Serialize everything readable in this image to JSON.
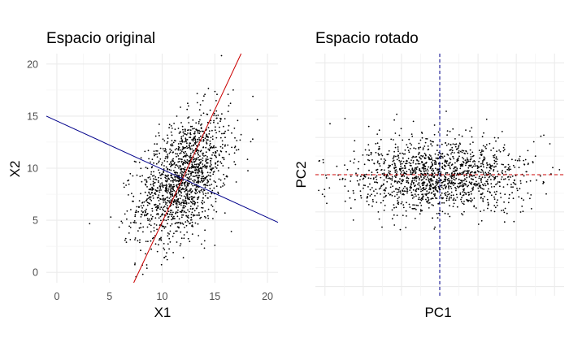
{
  "chart_data": [
    {
      "type": "scatter",
      "title": "Espacio original",
      "xlabel": "X1",
      "ylabel": "X2",
      "xlim": [
        -1,
        21
      ],
      "ylim": [
        -1,
        21
      ],
      "x_ticks": [
        0,
        5,
        10,
        15,
        20
      ],
      "y_ticks": [
        0,
        5,
        10,
        15,
        20
      ],
      "grid": true,
      "point_color": "#000000",
      "n_points": 1500,
      "point_cloud": {
        "center": [
          12,
          9
        ],
        "sd": [
          2.2,
          3.1
        ],
        "correlation": 0.45
      },
      "lines": [
        {
          "color": "#cc0000",
          "from": [
            7.3,
            -1
          ],
          "to": [
            17.5,
            21
          ]
        },
        {
          "color": "#00008b",
          "from": [
            -1,
            15
          ],
          "to": [
            21,
            4.8
          ]
        }
      ]
    },
    {
      "type": "scatter",
      "title": "Espacio rotado",
      "xlabel": "PC1",
      "ylabel": "PC2",
      "x_tick_labels": false,
      "y_tick_labels": false,
      "grid": true,
      "point_color": "#000000",
      "n_points": 1500,
      "point_cloud": {
        "center": [
          0,
          0
        ],
        "sd": [
          2.3,
          1.0
        ],
        "correlation": 0
      },
      "reference_lines": [
        {
          "orientation": "vertical",
          "value": 0,
          "color": "#00008b",
          "style": "dashed"
        },
        {
          "orientation": "horizontal",
          "value": 0,
          "color": "#cc0000",
          "style": "dashed"
        }
      ]
    }
  ]
}
